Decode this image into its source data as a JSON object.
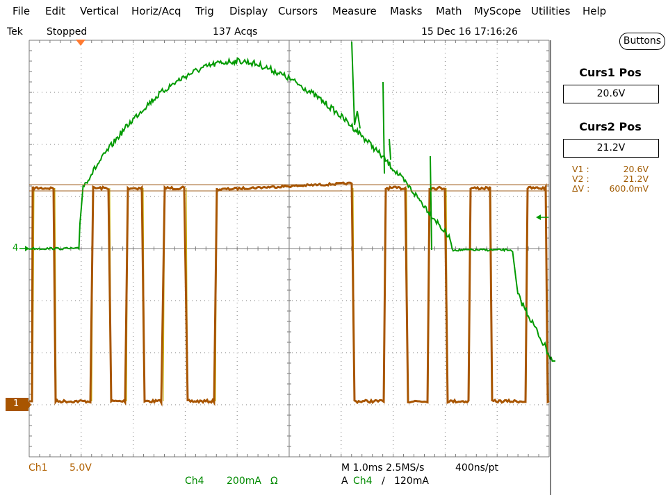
{
  "menu": [
    "File",
    "Edit",
    "Vertical",
    "Horiz/Acq",
    "Trig",
    "Display",
    "Cursors",
    "Measure",
    "Masks",
    "Math",
    "MyScope",
    "Utilities",
    "Help"
  ],
  "status": {
    "brand": "Tek",
    "state": "Stopped",
    "acqs": "137 Acqs",
    "datetime": "15 Dec 16 17:16:26"
  },
  "side_panel": {
    "buttons_label": "Buttons",
    "curs1_title": "Curs1 Pos",
    "curs1_value": "20.6V",
    "curs2_title": "Curs2 Pos",
    "curs2_value": "21.2V",
    "readouts": [
      {
        "label": "V1 :",
        "value": "20.6V"
      },
      {
        "label": "V2 :",
        "value": "21.2V"
      },
      {
        "label": "ΔV :",
        "value": "600.0mV"
      }
    ]
  },
  "bottom": {
    "ch1_label": "Ch1",
    "ch1_scale": "5.0V",
    "ch4_label": "Ch4",
    "ch4_scale": "200mA",
    "ch4_unit": "Ω",
    "timebase": "M 1.0ms 2.5MS/s",
    "resolution": "400ns/pt",
    "trigger_prefix": "A",
    "trigger_source": "Ch4",
    "trigger_slope": "∕",
    "trigger_level": "120mA"
  },
  "markers": {
    "ch4": "4",
    "ch1": "1"
  },
  "colors": {
    "ch1": "#b06000",
    "ch1_edge": "#c8b000",
    "ch4": "#009a00",
    "grid": "#7a7a7a",
    "cursor": "#a06020",
    "trigger": "#ff7a30"
  },
  "icons": [
    "trigger-position-icon",
    "ch4-ground-marker-icon",
    "ch1-ground-marker-icon",
    "trigger-level-arrow-icon"
  ]
}
